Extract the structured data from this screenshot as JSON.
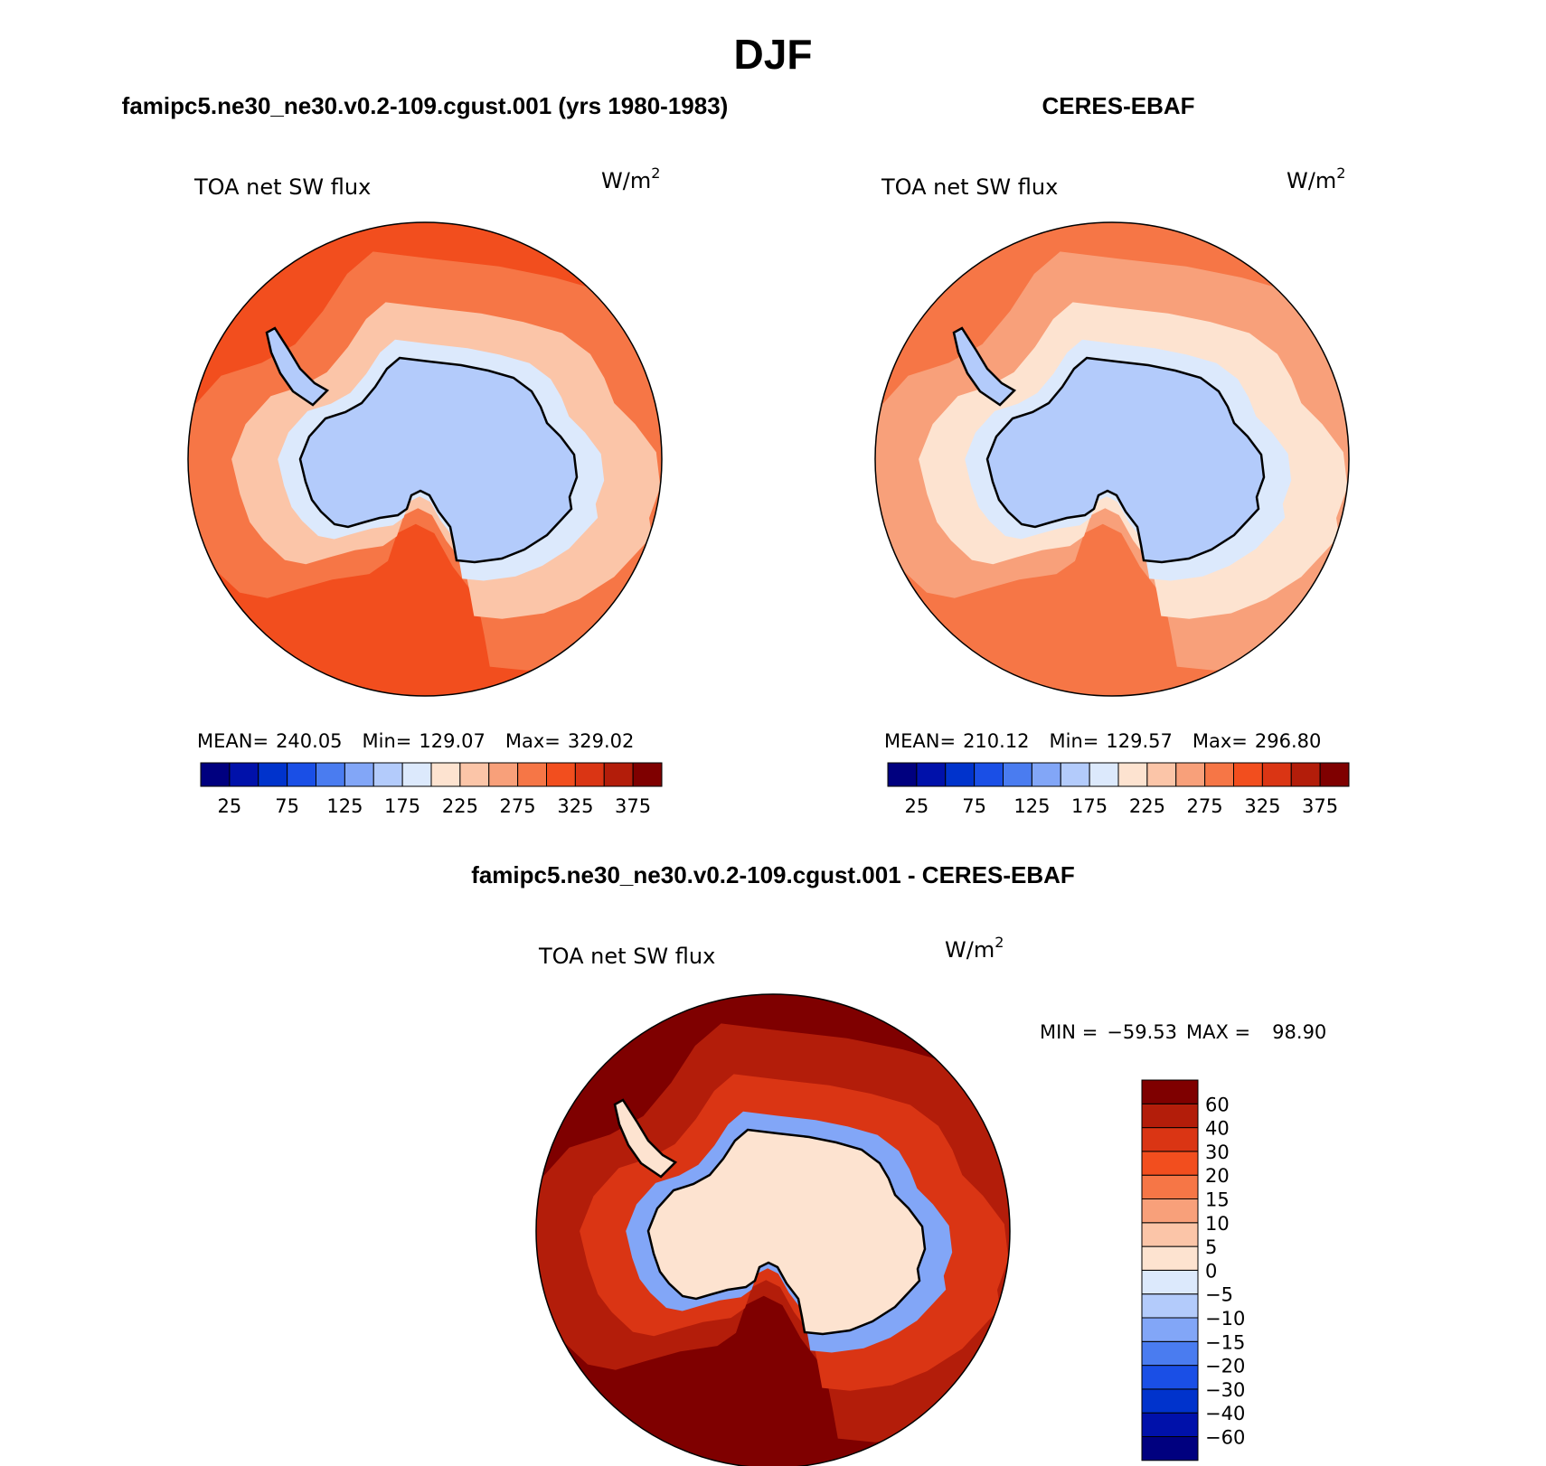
{
  "figure": {
    "season": "DJF",
    "difference_title": "famipc5.ne30_ne30.v0.2-109.cgust.001 - CERES-EBAF"
  },
  "colors": {
    "abs_levels": [
      "#00007f",
      "#0011aa",
      "#0033cc",
      "#1a4fe6",
      "#4a7cf0",
      "#82a6f7",
      "#b3cbfb",
      "#dce9fc",
      "#fde3d0",
      "#fbc5a8",
      "#f8a07a",
      "#f67646",
      "#f24e1e",
      "#da3514",
      "#b31d0a",
      "#7f0000"
    ],
    "diff_levels": [
      "#00007f",
      "#0011aa",
      "#0033cc",
      "#1a4fe6",
      "#4a7cf0",
      "#82a6f7",
      "#b3cbfb",
      "#dce9fc",
      "#fde3d0",
      "#fbc5a8",
      "#f8a07a",
      "#f67646",
      "#f24e1e",
      "#da3514",
      "#b31d0a",
      "#7f0000"
    ]
  },
  "chart_data": [
    {
      "type": "heatmap",
      "title": "famipc5.ne30_ne30.v0.2-109.cgust.001 (yrs 1980-1983)",
      "variable": "TOA net SW flux",
      "units_base": "W/m",
      "units_exp": "2",
      "stats": {
        "mean_label": "MEAN=",
        "mean": "240.05",
        "min_label": "Min=",
        "min": "129.07",
        "max_label": "Max=",
        "max": "329.02"
      },
      "colorbar_ticks": [
        "25",
        "75",
        "125",
        "175",
        "225",
        "275",
        "325",
        "375"
      ],
      "contour_levels": [
        25,
        50,
        75,
        100,
        125,
        150,
        175,
        200,
        225,
        250,
        275,
        300,
        325,
        350,
        375
      ],
      "region": "South polar stereographic",
      "field_rings": {
        "land": 160,
        "coast": 190,
        "sea_ice_edge": 240,
        "ocean_mid": 290,
        "ocean_outer": 315
      }
    },
    {
      "type": "heatmap",
      "title": "CERES-EBAF",
      "variable": "TOA net SW flux",
      "units_base": "W/m",
      "units_exp": "2",
      "stats": {
        "mean_label": "MEAN=",
        "mean": "210.12",
        "min_label": "Min=",
        "min": "129.57",
        "max_label": "Max=",
        "max": "296.80"
      },
      "colorbar_ticks": [
        "25",
        "75",
        "125",
        "175",
        "225",
        "275",
        "325",
        "375"
      ],
      "contour_levels": [
        25,
        50,
        75,
        100,
        125,
        150,
        175,
        200,
        225,
        250,
        275,
        300,
        325,
        350,
        375
      ],
      "region": "South polar stereographic",
      "field_rings": {
        "land": 150,
        "coast": 185,
        "sea_ice_edge": 215,
        "ocean_mid": 250,
        "ocean_outer": 280
      }
    },
    {
      "type": "heatmap",
      "title": "famipc5.ne30_ne30.v0.2-109.cgust.001 - CERES-EBAF",
      "variable": "TOA net SW flux",
      "units_base": "W/m",
      "units_exp": "2",
      "stats": {
        "min_label": "MIN =",
        "min": "−59.53",
        "max_label": "MAX =",
        "max": "98.90"
      },
      "colorbar_ticks": [
        "60",
        "40",
        "30",
        "20",
        "15",
        "10",
        "5",
        "0",
        "−5",
        "−10",
        "−15",
        "−20",
        "−30",
        "−40",
        "−60"
      ],
      "contour_levels": [
        -60,
        -40,
        -30,
        -20,
        -15,
        -10,
        -5,
        0,
        5,
        10,
        15,
        20,
        30,
        40,
        60
      ],
      "region": "South polar stereographic",
      "field_rings": {
        "land": 3,
        "coast": -12,
        "sea_ice_edge": 35,
        "ocean_mid": 45,
        "ocean_outer": 65
      }
    }
  ]
}
